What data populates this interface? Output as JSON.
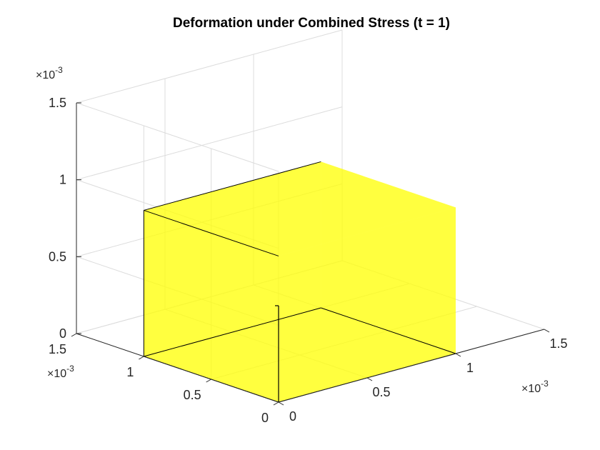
{
  "chart_data": {
    "type": "3d-surface",
    "title": "Deformation under Combined Stress (t = 1)",
    "xlabel": "",
    "ylabel": "",
    "zlabel": "",
    "grid": true,
    "view": "default-3d",
    "xlim": [
      0,
      0.0015
    ],
    "ylim": [
      0,
      0.0015
    ],
    "zlim": [
      0,
      0.0015
    ],
    "x_ticks": [
      0,
      0.0005,
      0.001,
      0.0015
    ],
    "y_ticks": [
      0,
      0.0005,
      0.001,
      0.0015
    ],
    "z_ticks": [
      0,
      0.0005,
      0.001,
      0.0015
    ],
    "x_tick_labels": [
      "0",
      "0.5",
      "1",
      "1.5"
    ],
    "y_tick_labels": [
      "0",
      "0.5",
      "1",
      "1.5"
    ],
    "z_tick_labels": [
      "0",
      "0.5",
      "1",
      "1.5"
    ],
    "axis_exponent": "×10",
    "axis_exponent_power": "-3",
    "box": {
      "x": [
        0,
        0.001
      ],
      "y": [
        0,
        0.001
      ],
      "z": [
        0,
        0.00095
      ],
      "face_color": "#ffff00",
      "face_alpha": 0.5,
      "edge_color": "#000000"
    }
  }
}
